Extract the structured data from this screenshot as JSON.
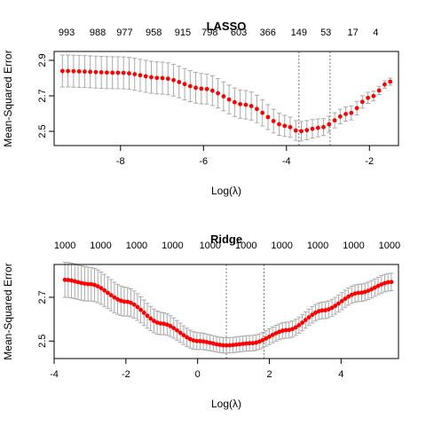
{
  "chart_data": [
    {
      "type": "scatter",
      "title": "LASSO",
      "xlabel": "Log(λ)",
      "ylabel": "Mean-Squared Error",
      "xlim": [
        -9.6,
        -1.3
      ],
      "ylim": [
        2.42,
        2.95
      ],
      "xticks": [
        -8,
        -6,
        -4,
        -2
      ],
      "yticks": [
        2.5,
        2.7,
        2.9
      ],
      "top_ticks": [
        {
          "x": -9.3,
          "label": "993"
        },
        {
          "x": -8.55,
          "label": "988"
        },
        {
          "x": -7.9,
          "label": "977"
        },
        {
          "x": -7.2,
          "label": "958"
        },
        {
          "x": -6.5,
          "label": "915"
        },
        {
          "x": -5.85,
          "label": "798"
        },
        {
          "x": -5.15,
          "label": "603"
        },
        {
          "x": -4.45,
          "label": "366"
        },
        {
          "x": -3.7,
          "label": "149"
        },
        {
          "x": -3.05,
          "label": "53"
        },
        {
          "x": -2.4,
          "label": "17"
        },
        {
          "x": -1.85,
          "label": "4"
        }
      ],
      "vlines": [
        -3.7,
        -2.95
      ],
      "x_range": [
        -9.4,
        -1.5
      ],
      "n_points": 60,
      "curve_knots": [
        [
          -9.4,
          2.84
        ],
        [
          -8.0,
          2.83
        ],
        [
          -7.0,
          2.8
        ],
        [
          -6.0,
          2.74
        ],
        [
          -5.0,
          2.65
        ],
        [
          -4.0,
          2.53
        ],
        [
          -3.7,
          2.5
        ],
        [
          -3.2,
          2.52
        ],
        [
          -2.5,
          2.6
        ],
        [
          -2.0,
          2.69
        ],
        [
          -1.5,
          2.78
        ]
      ],
      "se_knots": [
        [
          -9.4,
          0.09
        ],
        [
          -7.0,
          0.09
        ],
        [
          -5.0,
          0.08
        ],
        [
          -3.7,
          0.055
        ],
        [
          -2.5,
          0.04
        ],
        [
          -1.5,
          0.02
        ]
      ]
    },
    {
      "type": "scatter",
      "title": "Ridge",
      "xlabel": "Log(λ)",
      "ylabel": "Mean-Squared Error",
      "xlim": [
        -4.0,
        5.6
      ],
      "ylim": [
        2.42,
        2.85
      ],
      "xticks": [
        -4,
        -2,
        0,
        2,
        4
      ],
      "yticks": [
        2.5,
        2.7
      ],
      "top_ticks": [
        {
          "x": -3.7,
          "label": "1000"
        },
        {
          "x": -2.7,
          "label": "1000"
        },
        {
          "x": -1.7,
          "label": "1000"
        },
        {
          "x": -0.7,
          "label": "1000"
        },
        {
          "x": 0.35,
          "label": "1000"
        },
        {
          "x": 1.35,
          "label": "1000"
        },
        {
          "x": 2.35,
          "label": "1000"
        },
        {
          "x": 3.35,
          "label": "1000"
        },
        {
          "x": 4.35,
          "label": "1000"
        },
        {
          "x": 5.35,
          "label": "1000"
        }
      ],
      "vlines": [
        0.8,
        1.85
      ],
      "x_range": [
        -3.7,
        5.4
      ],
      "n_points": 100,
      "curve_knots": [
        [
          -3.7,
          2.78
        ],
        [
          -3.0,
          2.76
        ],
        [
          -2.0,
          2.68
        ],
        [
          -1.0,
          2.58
        ],
        [
          0.0,
          2.5
        ],
        [
          0.8,
          2.48
        ],
        [
          1.5,
          2.49
        ],
        [
          2.5,
          2.55
        ],
        [
          3.5,
          2.64
        ],
        [
          4.5,
          2.72
        ],
        [
          5.4,
          2.77
        ]
      ],
      "se_knots": [
        [
          -3.7,
          0.08
        ],
        [
          0.8,
          0.035
        ],
        [
          5.4,
          0.04
        ]
      ]
    }
  ]
}
